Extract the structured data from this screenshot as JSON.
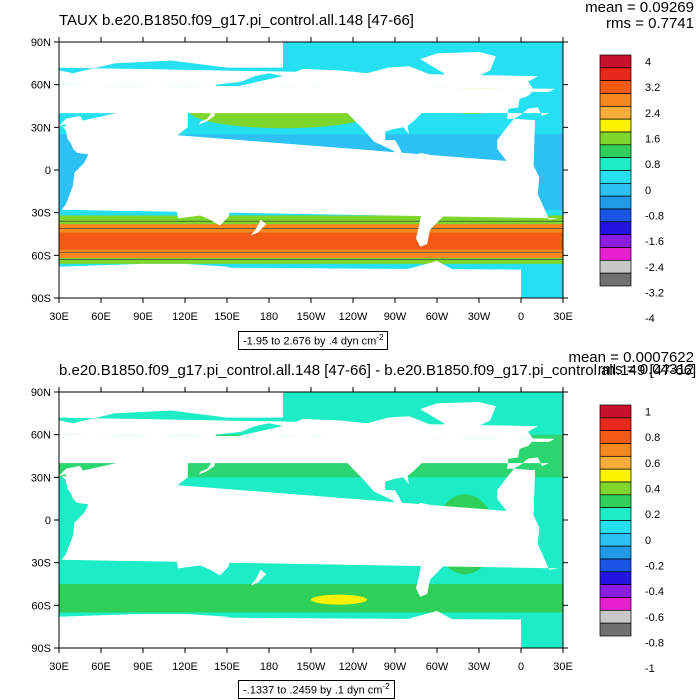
{
  "panels": [
    {
      "title": "TAUX b.e20.B1850.f09_g17.pi_control.all.148 [47-66]",
      "mean_text": "mean = 0.09269",
      "rms_text": "rms = 0.7741",
      "contour_info": "-1.95 to 2.676 by .4 dyn cm",
      "contour_info_exp": "-2",
      "colorbar_labels": [
        "4",
        "3.2",
        "2.4",
        "1.6",
        "0.8",
        "0",
        "-0.8",
        "-1.6",
        "-2.4",
        "-3.2",
        "-4"
      ],
      "colors": [
        "#c8102e",
        "#e8281c",
        "#f55a14",
        "#f6881e",
        "#f7ad3a",
        "#fbf200",
        "#7ed52b",
        "#2fd05a",
        "#1cedc6",
        "#25e0f0",
        "#2cc0f4",
        "#1f9ae7",
        "#1a55e6",
        "#2414e2",
        "#8a1ce4",
        "#e61fd0",
        "#c8c8c8",
        "#707070"
      ],
      "map_colors": {
        "ocean_base": "#25e0f0",
        "trades": "#2cc0f4",
        "westerlies": "#f6881e",
        "westerly_core": "#f55a14",
        "mid_lat": "#7ed52b",
        "mid_lat_core": "#fbf200",
        "land": "#ffffff"
      }
    },
    {
      "title": "b.e20.B1850.f09_g17.pi_control.all.148 [47-66] - b.e20.B1850.f09_g17.pi_control.all.149 [47-66]",
      "mean_text": "mean = 0.0007622",
      "rms_text": "rms = 0.04312",
      "contour_info": "-.1337 to .2459 by .1 dyn cm",
      "contour_info_exp": "-2",
      "colorbar_labels": [
        "1",
        "0.8",
        "0.6",
        "0.4",
        "0.2",
        "0",
        "-0.2",
        "-0.4",
        "-0.6",
        "-0.8",
        "-1"
      ],
      "colors": [
        "#c8102e",
        "#e8281c",
        "#f55a14",
        "#f6881e",
        "#f7ad3a",
        "#fbf200",
        "#7ed52b",
        "#2fd05a",
        "#1cedc6",
        "#25e0f0",
        "#2cc0f4",
        "#1f9ae7",
        "#1a55e6",
        "#2414e2",
        "#8a1ce4",
        "#e61fd0",
        "#c8c8c8",
        "#707070"
      ],
      "map_colors": {
        "ocean_base": "#1cedc6",
        "green": "#2fd05a",
        "yellow": "#fbf200",
        "land": "#ffffff"
      }
    }
  ],
  "axes": {
    "lat_labels": [
      "90N",
      "60N",
      "30N",
      "0",
      "30S",
      "60S",
      "90S"
    ],
    "lon_labels": [
      "30E",
      "60E",
      "90E",
      "120E",
      "150E",
      "180",
      "150W",
      "120W",
      "90W",
      "60W",
      "30W",
      "0",
      "30E"
    ]
  }
}
